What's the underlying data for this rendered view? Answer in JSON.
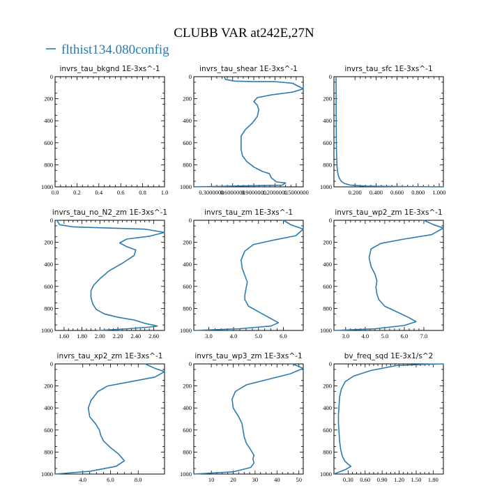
{
  "figure": {
    "title": "CLUBB VAR at242E,27N",
    "legend_label": "flthist134.080config",
    "series_color": "#2a7ab0"
  },
  "chart_data": [
    {
      "type": "line",
      "title": "invrs_tau_bkgnd   1E-3xs^-1",
      "xlim": [
        0,
        1.0
      ],
      "ylim": [
        0,
        1000
      ],
      "y_inverted": true,
      "xticks": [
        0,
        0.2,
        0.4,
        0.6,
        0.8,
        1.0
      ],
      "xtick_labels": [
        "0.0",
        "0.2",
        "0.4",
        "0.6",
        "0.8",
        "1.0"
      ],
      "yticks": [
        0,
        200,
        400,
        600,
        800,
        1000
      ],
      "ytick_labels": [
        "0",
        "200",
        "400",
        "600",
        "800",
        "1000"
      ],
      "series": [
        {
          "x": [],
          "y": []
        }
      ]
    },
    {
      "type": "line",
      "title": "invrs_tau_shear   1E-3xs^-1",
      "xlim": [
        0.05,
        1.6
      ],
      "ylim": [
        0,
        1000
      ],
      "y_inverted": true,
      "xticks": [
        0.3,
        0.6,
        0.9,
        1.2,
        1.5
      ],
      "xtick_labels": [
        "0.3000000",
        "0.6000000",
        "0.9000000",
        "1.2000000",
        "1.5000000"
      ],
      "yticks": [
        0,
        200,
        400,
        600,
        800,
        1000
      ],
      "ytick_labels": [
        "0",
        "200",
        "400",
        "600",
        "800",
        "1000"
      ],
      "series": [
        {
          "x": [
            0.48,
            0.5,
            0.62,
            0.9,
            1.2,
            1.45,
            1.6,
            1.45,
            1.15,
            0.95,
            0.9,
            0.95,
            0.97,
            0.95,
            0.88,
            0.78,
            0.72,
            0.72,
            0.72,
            0.74,
            0.8,
            0.9,
            1.02,
            1.12,
            1.15,
            1.22,
            1.35,
            1.3,
            0.05
          ],
          "y": [
            0,
            25,
            40,
            45,
            45,
            60,
            110,
            140,
            165,
            190,
            225,
            260,
            300,
            360,
            420,
            480,
            540,
            600,
            660,
            720,
            770,
            820,
            860,
            880,
            920,
            955,
            965,
            985,
            1000
          ]
        }
      ]
    },
    {
      "type": "line",
      "title": "invrs_tau_sfc   1E-3xs^-1",
      "xlim": [
        0,
        1.04
      ],
      "ylim": [
        0,
        1000
      ],
      "y_inverted": true,
      "xticks": [
        0.2,
        0.4,
        0.6,
        0.8,
        1.0
      ],
      "xtick_labels": [
        "0.200",
        "0.400",
        "0.600",
        "0.800",
        "1.000"
      ],
      "yticks": [
        0,
        200,
        400,
        600,
        800,
        1000
      ],
      "ytick_labels": [
        "0",
        "200",
        "400",
        "600",
        "800",
        "1000"
      ],
      "series": [
        {
          "x": [
            0.02,
            0.021,
            0.022,
            0.023,
            0.025,
            0.027,
            0.03,
            0.034,
            0.04,
            0.05,
            0.07,
            0.1,
            0.16,
            0.3,
            0.6,
            1.04
          ],
          "y": [
            0,
            200,
            400,
            600,
            700,
            760,
            820,
            860,
            890,
            920,
            950,
            970,
            985,
            993,
            997,
            1000
          ]
        }
      ]
    },
    {
      "type": "line",
      "title": "invrs_tau_no_N2_zm   1E-3xs^-1",
      "xlim": [
        1.5,
        2.72
      ],
      "ylim": [
        0,
        1000
      ],
      "y_inverted": true,
      "xticks": [
        1.6,
        1.8,
        2.0,
        2.2,
        2.4,
        2.6
      ],
      "xtick_labels": [
        "1.60",
        "1.80",
        "2.00",
        "2.20",
        "2.40",
        "2.60"
      ],
      "yticks": [
        0,
        200,
        400,
        600,
        800,
        1000
      ],
      "ytick_labels": [
        "0",
        "200",
        "400",
        "600",
        "800",
        "1000"
      ],
      "series": [
        {
          "x": [
            1.52,
            1.55,
            1.7,
            2.1,
            2.5,
            2.72,
            2.55,
            2.3,
            2.22,
            2.3,
            2.4,
            2.38,
            2.25,
            2.1,
            2.0,
            1.93,
            1.9,
            1.9,
            1.92,
            1.96,
            2.05,
            2.2,
            2.38,
            2.5,
            2.64,
            2.55,
            2.3,
            1.98
          ],
          "y": [
            0,
            40,
            60,
            70,
            80,
            110,
            145,
            170,
            205,
            240,
            270,
            320,
            390,
            460,
            530,
            590,
            640,
            700,
            760,
            810,
            850,
            880,
            905,
            935,
            960,
            970,
            985,
            1000
          ]
        }
      ]
    },
    {
      "type": "line",
      "title": "invrs_tau_zm   1E-3xs^-1",
      "xlim": [
        2.4,
        6.8
      ],
      "ylim": [
        0,
        1000
      ],
      "y_inverted": true,
      "xticks": [
        3.0,
        4.0,
        5.0,
        6.0
      ],
      "xtick_labels": [
        "3.0",
        "4.0",
        "5.0",
        "6.0"
      ],
      "yticks": [
        0,
        200,
        400,
        600,
        800,
        1000
      ],
      "ytick_labels": [
        "0",
        "200",
        "400",
        "600",
        "800",
        "1000"
      ],
      "series": [
        {
          "x": [
            6.0,
            6.3,
            6.8,
            6.5,
            5.6,
            4.8,
            4.45,
            4.3,
            4.35,
            4.45,
            4.55,
            4.5,
            4.45,
            4.45,
            4.6,
            5.0,
            5.4,
            5.8,
            5.5,
            4.2,
            2.4
          ],
          "y": [
            0,
            40,
            80,
            140,
            180,
            220,
            280,
            360,
            440,
            500,
            560,
            620,
            680,
            720,
            780,
            830,
            880,
            930,
            960,
            985,
            1000
          ]
        }
      ]
    },
    {
      "type": "line",
      "title": "invrs_tau_wp2_zm   1E-3xs^-1",
      "xlim": [
        2.4,
        8.0
      ],
      "ylim": [
        0,
        1000
      ],
      "y_inverted": true,
      "xticks": [
        3.0,
        4.0,
        5.0,
        6.0,
        7.0
      ],
      "xtick_labels": [
        "3.0",
        "4.0",
        "5.0",
        "6.0",
        "7.0"
      ],
      "yticks": [
        0,
        200,
        400,
        600,
        800,
        1000
      ],
      "ytick_labels": [
        "0",
        "200",
        "400",
        "600",
        "800",
        "1000"
      ],
      "series": [
        {
          "x": [
            7.0,
            7.5,
            8.0,
            7.4,
            6.0,
            4.8,
            4.3,
            4.2,
            4.3,
            4.5,
            4.6,
            4.55,
            4.6,
            4.7,
            5.0,
            5.6,
            6.2,
            6.6,
            6.0,
            4.5,
            2.4
          ],
          "y": [
            0,
            40,
            70,
            130,
            170,
            210,
            260,
            340,
            420,
            490,
            550,
            610,
            670,
            720,
            780,
            830,
            880,
            920,
            955,
            985,
            1000
          ]
        }
      ]
    },
    {
      "type": "line",
      "title": "invrs_tau_xp2_zm   1E-3xs^-1",
      "xlim": [
        2.0,
        9.9
      ],
      "ylim": [
        0,
        1000
      ],
      "y_inverted": true,
      "xticks": [
        4.0,
        6.0,
        8.0
      ],
      "xtick_labels": [
        "4.0",
        "6.0",
        "8.0"
      ],
      "yticks": [
        0,
        200,
        400,
        600,
        800,
        1000
      ],
      "ytick_labels": [
        "0",
        "200",
        "400",
        "600",
        "800",
        "1000"
      ],
      "series": [
        {
          "x": [
            8.5,
            9.2,
            9.9,
            9.2,
            7.5,
            5.8,
            5.1,
            4.6,
            4.4,
            4.5,
            4.9,
            5.2,
            5.3,
            5.5,
            6.0,
            6.6,
            7.0,
            6.4,
            4.5,
            2.0
          ],
          "y": [
            0,
            40,
            70,
            120,
            160,
            200,
            250,
            330,
            400,
            480,
            540,
            600,
            650,
            700,
            760,
            820,
            880,
            930,
            975,
            1000
          ]
        }
      ]
    },
    {
      "type": "line",
      "title": "invrs_tau_wp3_zm   1E-3xs^-1",
      "xlim": [
        2,
        52
      ],
      "ylim": [
        0,
        1000
      ],
      "y_inverted": true,
      "xticks": [
        10,
        20,
        30,
        40,
        50
      ],
      "xtick_labels": [
        "10",
        "20",
        "30",
        "40",
        "50"
      ],
      "yticks": [
        0,
        200,
        400,
        600,
        800,
        1000
      ],
      "ytick_labels": [
        "0",
        "200",
        "400",
        "600",
        "800",
        "1000"
      ],
      "series": [
        {
          "x": [
            47,
            52,
            46,
            36,
            26,
            21,
            19.5,
            20,
            22.5,
            24,
            24.5,
            25,
            26,
            28,
            29.5,
            29,
            29.5,
            28,
            20,
            2
          ],
          "y": [
            0,
            40,
            90,
            140,
            190,
            250,
            320,
            400,
            480,
            540,
            600,
            660,
            720,
            780,
            830,
            860,
            900,
            940,
            980,
            1000
          ]
        }
      ]
    },
    {
      "type": "line",
      "title": "bv_freq_sqd   1E-3x1/s^2",
      "xlim": [
        0.05,
        1.98
      ],
      "ylim": [
        0,
        1000
      ],
      "y_inverted": true,
      "xticks": [
        0.3,
        0.6,
        0.9,
        1.2,
        1.5,
        1.8
      ],
      "xtick_labels": [
        "0.30",
        "0.60",
        "0.90",
        "1.20",
        "1.50",
        "1.80"
      ],
      "yticks": [
        0,
        200,
        400,
        600,
        800,
        1000
      ],
      "ytick_labels": [
        "0",
        "200",
        "400",
        "600",
        "800",
        "1000"
      ],
      "series": [
        {
          "x": [
            1.98,
            1.6,
            1.15,
            0.7,
            0.4,
            0.25,
            0.18,
            0.15,
            0.14,
            0.13,
            0.13,
            0.14,
            0.15,
            0.17,
            0.2,
            0.24,
            0.3,
            0.35,
            0.25,
            0.05
          ],
          "y": [
            0,
            5,
            15,
            60,
            110,
            160,
            230,
            300,
            380,
            460,
            540,
            620,
            700,
            780,
            840,
            880,
            910,
            930,
            960,
            1000
          ]
        }
      ]
    }
  ]
}
